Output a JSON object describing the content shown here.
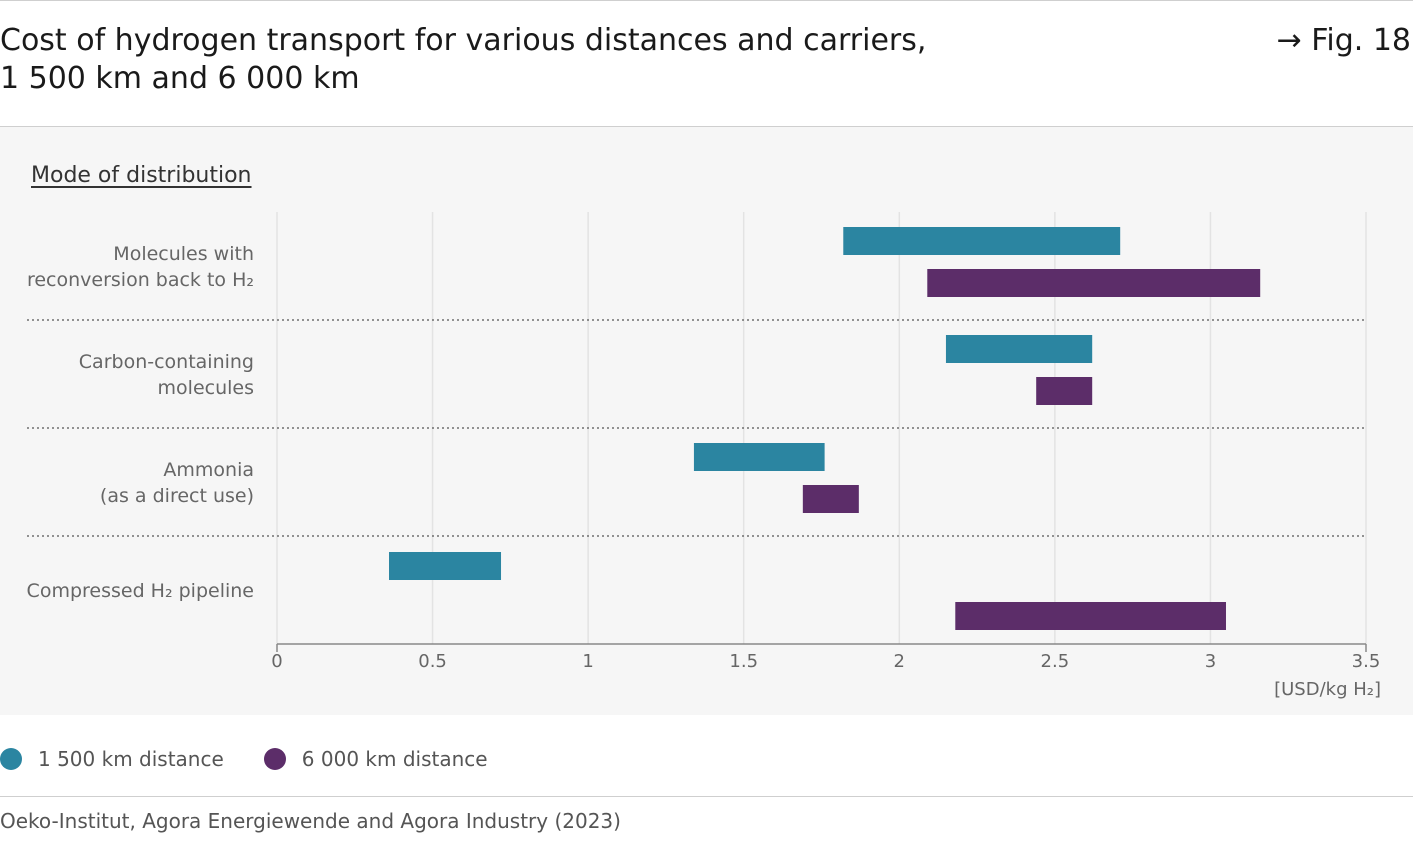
{
  "header": {
    "title_line1": "Cost of hydrogen transport for various distances and carriers,",
    "title_line2": "1 500 km and 6 000 km",
    "figure_ref": "→ Fig. 18"
  },
  "panel": {
    "heading": "Mode of distribution"
  },
  "chart_data": {
    "type": "bar",
    "orientation": "horizontal-range",
    "xlabel": "[USD/kg H₂]",
    "xlim": [
      0,
      3.5
    ],
    "xticks": [
      0,
      0.5,
      1,
      1.5,
      2,
      2.5,
      3,
      3.5
    ],
    "xtick_labels": [
      "0",
      "0.5",
      "1",
      "1.5",
      "2",
      "2.5",
      "3",
      "3.5"
    ],
    "grid": true,
    "legend_position": "bottom-left",
    "categories": [
      {
        "id": "molecules",
        "lines": [
          "Molecules with",
          "reconversion back to H₂"
        ]
      },
      {
        "id": "carbon",
        "lines": [
          "Carbon-containing",
          "molecules"
        ]
      },
      {
        "id": "ammonia",
        "lines": [
          "Ammonia",
          "(as a direct use)"
        ]
      },
      {
        "id": "pipeline",
        "lines": [
          "Compressed H₂ pipeline"
        ]
      }
    ],
    "series": [
      {
        "name": "1 500 km distance",
        "color": "#2b85a1",
        "ranges": [
          [
            1.82,
            2.71
          ],
          [
            2.15,
            2.62
          ],
          [
            1.34,
            1.76
          ],
          [
            0.36,
            0.72
          ]
        ]
      },
      {
        "name": "6 000 km distance",
        "color": "#5c2d69",
        "ranges": [
          [
            2.09,
            3.16
          ],
          [
            2.44,
            2.62
          ],
          [
            1.69,
            1.87
          ],
          [
            2.18,
            3.05
          ]
        ]
      }
    ]
  },
  "legend": {
    "items": [
      {
        "label": "1 500 km distance",
        "color": "#2b85a1"
      },
      {
        "label": "6 000 km distance",
        "color": "#5c2d69"
      }
    ]
  },
  "footer": {
    "source": "Oeko-Institut, Agora Energiewende and Agora Industry (2023)"
  }
}
